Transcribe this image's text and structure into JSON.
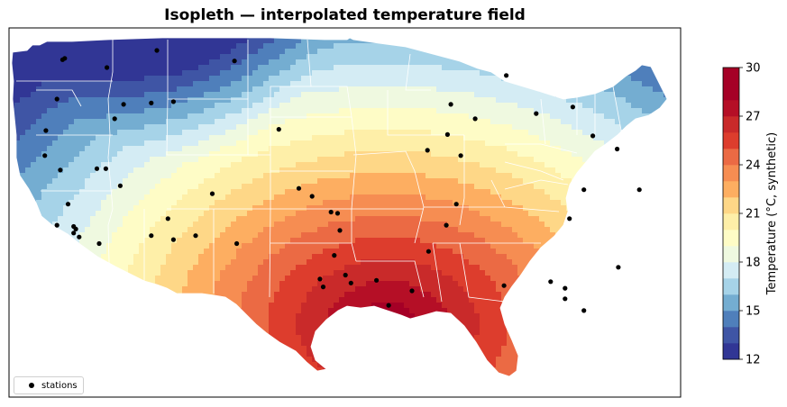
{
  "title": "Isopleth — interpolated temperature field",
  "legend": {
    "label": "stations"
  },
  "colorbar": {
    "label": "Temperature (°C, synthetic)",
    "min": 12,
    "max": 30,
    "ticks": [
      12,
      15,
      18,
      21,
      24,
      27,
      30
    ],
    "levels": [
      12,
      13,
      14,
      15,
      16,
      17,
      18,
      19,
      20,
      21,
      22,
      23,
      24,
      25,
      26,
      27,
      28,
      29,
      30
    ],
    "colors": [
      "#313695",
      "#3f55a5",
      "#4f7fbb",
      "#74add1",
      "#a6d3e8",
      "#d4ecf4",
      "#eff9e0",
      "#fefcc6",
      "#feefa8",
      "#fed787",
      "#fdae61",
      "#f68d52",
      "#eb6a44",
      "#dd3d2d",
      "#c92a2a",
      "#b50f26",
      "#a50026",
      "#a50026"
    ]
  },
  "chart_data": {
    "type": "map",
    "title": "Isopleth — interpolated temperature field",
    "colorbar_label": "Temperature (°C, synthetic)",
    "colorbar_range": [
      12,
      30
    ],
    "colorbar_ticks": [
      12,
      15,
      18,
      21,
      24,
      27,
      30
    ],
    "series": [
      {
        "name": "stations",
        "points": [
          [
            -120.5,
            48.2
          ],
          [
            -120.3,
            48.3
          ],
          [
            -116.5,
            47.6
          ],
          [
            -112.0,
            48.9
          ],
          [
            -105.0,
            48.1
          ],
          [
            -121.0,
            45.2
          ],
          [
            -115.0,
            44.8
          ],
          [
            -112.5,
            44.9
          ],
          [
            -110.5,
            45.0
          ],
          [
            -115.8,
            43.7
          ],
          [
            -122.0,
            42.8
          ],
          [
            -122.1,
            40.9
          ],
          [
            -120.7,
            39.8
          ],
          [
            -117.4,
            39.9
          ],
          [
            -116.6,
            39.9
          ],
          [
            -115.3,
            38.6
          ],
          [
            -120.0,
            37.2
          ],
          [
            -107.0,
            38.0
          ],
          [
            -111.0,
            36.1
          ],
          [
            -121.0,
            35.6
          ],
          [
            -119.5,
            35.5
          ],
          [
            -119.5,
            35.0
          ],
          [
            -117.2,
            34.2
          ],
          [
            -119.3,
            35.3
          ],
          [
            -119.0,
            34.7
          ],
          [
            -112.5,
            34.8
          ],
          [
            -110.5,
            34.5
          ],
          [
            -108.5,
            34.8
          ],
          [
            -104.8,
            34.2
          ],
          [
            -101.0,
            42.9
          ],
          [
            -99.2,
            38.4
          ],
          [
            -98.0,
            37.8
          ],
          [
            -96.3,
            36.6
          ],
          [
            -95.7,
            36.5
          ],
          [
            -95.5,
            35.2
          ],
          [
            -97.3,
            31.5
          ],
          [
            -97.0,
            30.9
          ],
          [
            -96.0,
            33.3
          ],
          [
            -95.0,
            31.8
          ],
          [
            -94.5,
            31.2
          ],
          [
            -92.2,
            31.4
          ],
          [
            -91.1,
            29.5
          ],
          [
            -89.0,
            30.6
          ],
          [
            -87.5,
            33.6
          ],
          [
            -85.9,
            35.6
          ],
          [
            -85.0,
            37.2
          ],
          [
            -87.6,
            41.3
          ],
          [
            -85.8,
            42.5
          ],
          [
            -84.6,
            40.9
          ],
          [
            -85.5,
            44.8
          ],
          [
            -83.3,
            43.7
          ],
          [
            -80.5,
            47.0
          ],
          [
            -77.8,
            44.1
          ],
          [
            -74.5,
            44.6
          ],
          [
            -72.7,
            42.4
          ],
          [
            -70.5,
            41.4
          ],
          [
            -73.5,
            38.3
          ],
          [
            -68.5,
            38.3
          ],
          [
            -74.8,
            36.1
          ],
          [
            -75.2,
            30.8
          ],
          [
            -76.5,
            31.3
          ],
          [
            -70.4,
            32.4
          ],
          [
            -75.2,
            30.0
          ],
          [
            -80.7,
            31.0
          ],
          [
            -73.5,
            29.1
          ]
        ]
      }
    ]
  }
}
